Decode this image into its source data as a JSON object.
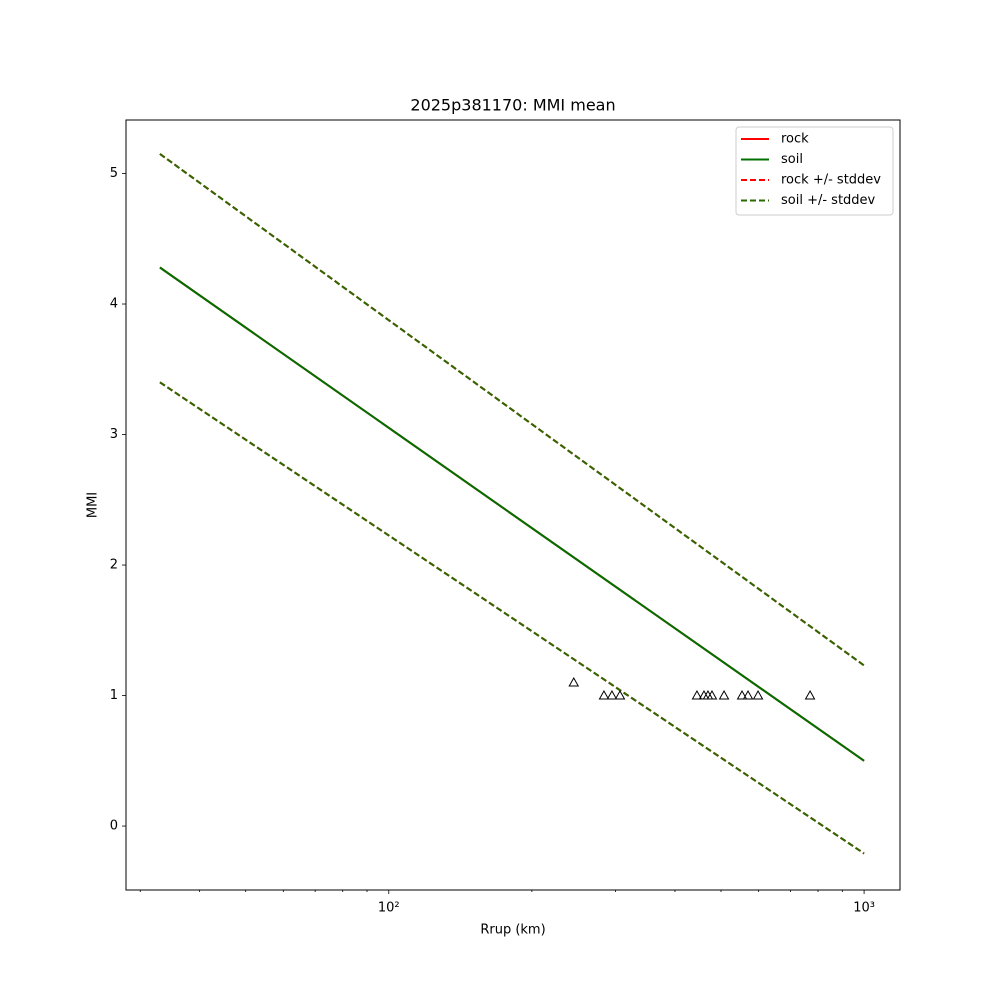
{
  "chart_data": {
    "type": "line",
    "title": "2025p381170: MMI mean",
    "xlabel": "Rrup (km)",
    "ylabel": "MMI",
    "xscale": "log",
    "xlim": [
      28,
      1190
    ],
    "ylim": [
      -0.49,
      5.41
    ],
    "xticks": [
      {
        "value": 100,
        "label": "10²"
      },
      {
        "value": 1000,
        "label": "10³"
      }
    ],
    "xminorticks": [
      30,
      40,
      50,
      60,
      70,
      80,
      90,
      200,
      300,
      400,
      500,
      600,
      700,
      800,
      900
    ],
    "yticks": [
      0,
      1,
      2,
      3,
      4,
      5
    ],
    "legend": "upper right",
    "x": [
      33,
      1000
    ],
    "series": [
      {
        "name": "rock",
        "color": "#ff0000",
        "style": "solid",
        "values": [
          4.28,
          0.5
        ]
      },
      {
        "name": "soil",
        "color": "#007000",
        "style": "solid",
        "values": [
          4.28,
          0.5
        ]
      },
      {
        "name": "rock +/- stddev",
        "color": "#ff0000",
        "style": "dashed",
        "upper": [
          5.15,
          1.23
        ],
        "lower": [
          3.4,
          -0.21
        ]
      },
      {
        "name": "soil +/- stddev",
        "color": "#2a6a00",
        "style": "dashed",
        "upper": [
          5.15,
          1.23
        ],
        "lower": [
          3.4,
          -0.21
        ]
      }
    ],
    "points": {
      "marker": "triangle",
      "color": "#000000",
      "x": [
        245,
        283.6,
        294.8,
        306.5,
        445,
        460.4,
        469.4,
        478.6,
        507.4,
        553.6,
        569.9,
        598.3,
        769.7
      ],
      "y": [
        1.1,
        1,
        1,
        1,
        1,
        1,
        1,
        1,
        1,
        1,
        1,
        1,
        1
      ]
    }
  }
}
